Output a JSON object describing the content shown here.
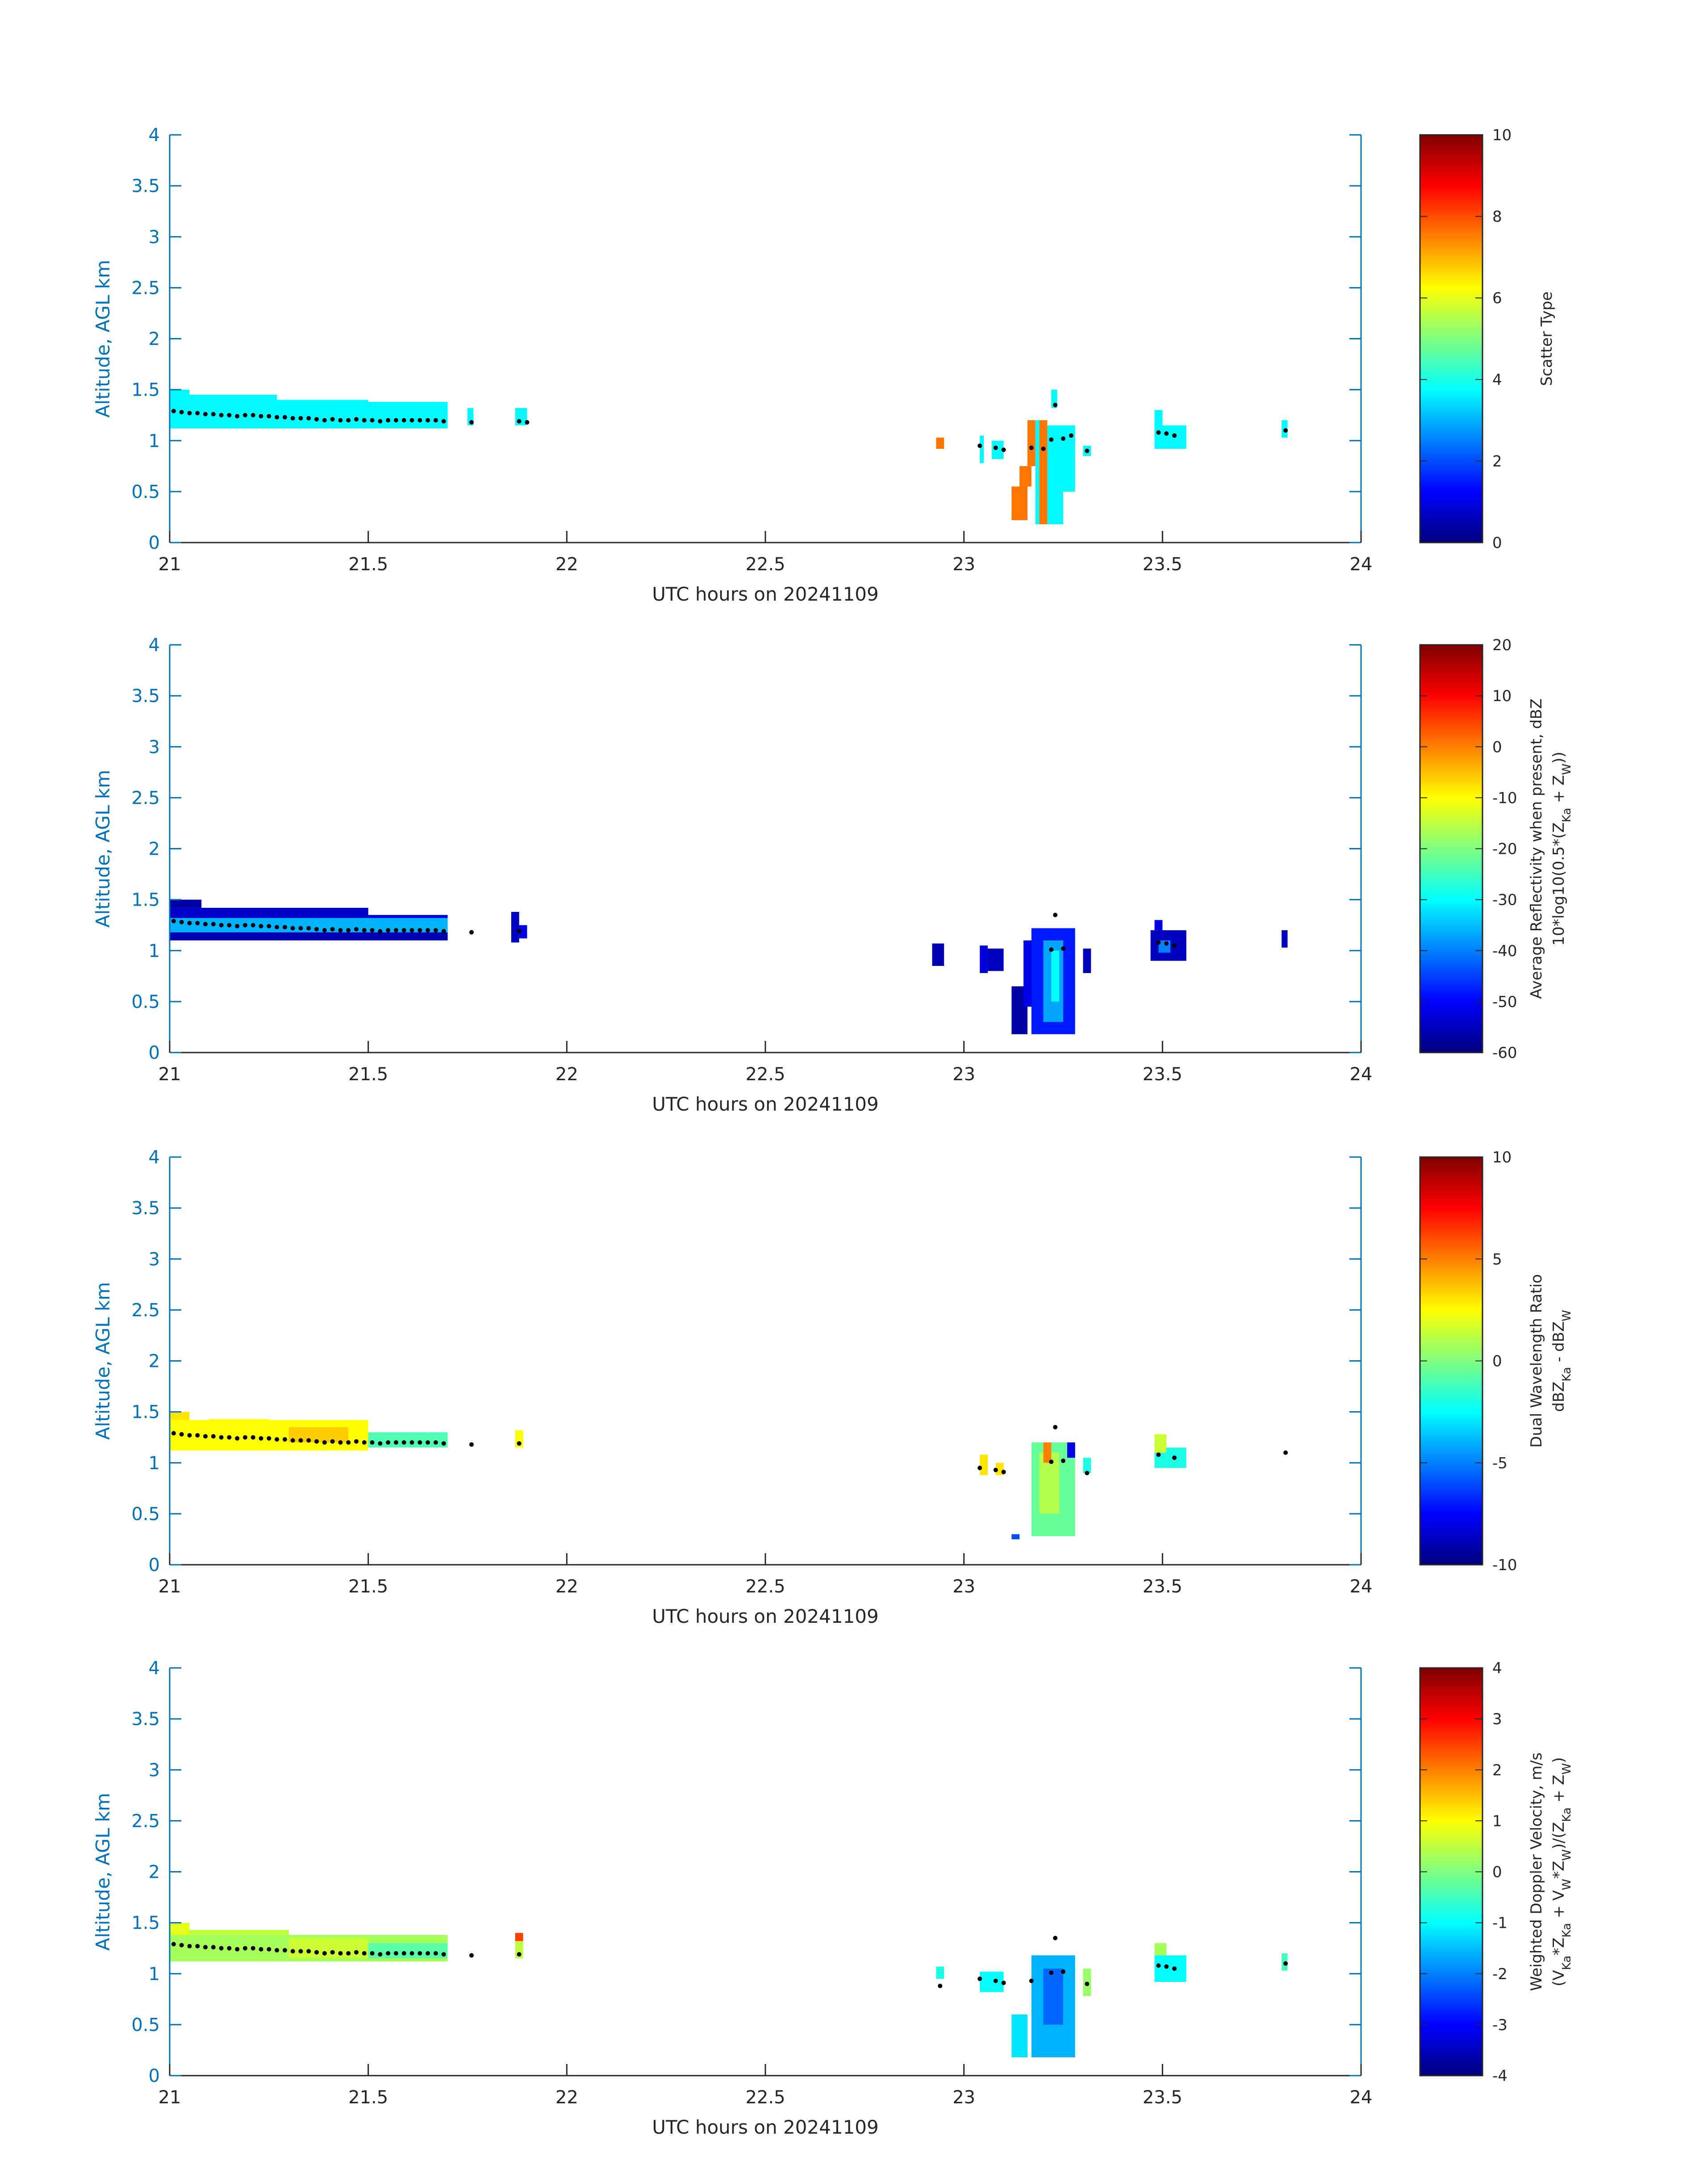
{
  "colors": {
    "axis": "#0072BD",
    "text": "#262626",
    "centroid_dots": "#000000",
    "colormap": "jet"
  },
  "chart_data": [
    {
      "type": "heatmap",
      "xlabel": "UTC hours on 20241109",
      "ylabel": "Altitude, AGL km",
      "xlim": [
        21,
        24
      ],
      "ylim": [
        0,
        4
      ],
      "xticks": [
        "21",
        "21.5",
        "22",
        "22.5",
        "23",
        "23.5",
        "24"
      ],
      "yticks": [
        "0",
        "0.5",
        "1",
        "1.5",
        "2",
        "2.5",
        "3",
        "3.5",
        "4"
      ],
      "colorbar": {
        "label": "Scatter Type",
        "sublabel": "",
        "clim": [
          0,
          10
        ],
        "ticks": [
          "0",
          "2",
          "4",
          "6",
          "8",
          "10"
        ]
      },
      "cells": [
        {
          "x0": 21.0,
          "x1": 21.7,
          "y0": 1.12,
          "y1": 1.38,
          "v": 3.7
        },
        {
          "x0": 21.0,
          "x1": 21.05,
          "y0": 1.38,
          "y1": 1.5,
          "v": 3.7
        },
        {
          "x0": 21.05,
          "x1": 21.27,
          "y0": 1.38,
          "y1": 1.45,
          "v": 3.7
        },
        {
          "x0": 21.27,
          "x1": 21.5,
          "y0": 1.38,
          "y1": 1.4,
          "v": 3.7
        },
        {
          "x0": 21.75,
          "x1": 21.765,
          "y0": 1.15,
          "y1": 1.32,
          "v": 3.7
        },
        {
          "x0": 21.87,
          "x1": 21.9,
          "y0": 1.15,
          "y1": 1.32,
          "v": 3.7
        },
        {
          "x0": 22.93,
          "x1": 22.95,
          "y0": 0.92,
          "y1": 1.03,
          "v": 7.6
        },
        {
          "x0": 23.04,
          "x1": 23.05,
          "y0": 0.78,
          "y1": 1.05,
          "v": 3.7
        },
        {
          "x0": 23.07,
          "x1": 23.1,
          "y0": 0.82,
          "y1": 1.0,
          "v": 3.7
        },
        {
          "x0": 23.12,
          "x1": 23.16,
          "y0": 0.22,
          "y1": 0.55,
          "v": 7.6
        },
        {
          "x0": 23.14,
          "x1": 23.17,
          "y0": 0.55,
          "y1": 0.75,
          "v": 7.6
        },
        {
          "x0": 23.16,
          "x1": 23.18,
          "y0": 0.75,
          "y1": 1.2,
          "v": 7.6
        },
        {
          "x0": 23.18,
          "x1": 23.2,
          "y0": 0.4,
          "y1": 1.2,
          "v": 3.7
        },
        {
          "x0": 23.18,
          "x1": 23.2,
          "y0": 0.18,
          "y1": 0.4,
          "v": 3.7
        },
        {
          "x0": 23.19,
          "x1": 23.21,
          "y0": 0.18,
          "y1": 1.2,
          "v": 7.6
        },
        {
          "x0": 23.21,
          "x1": 23.25,
          "y0": 0.18,
          "y1": 1.15,
          "v": 3.7
        },
        {
          "x0": 23.22,
          "x1": 23.235,
          "y0": 1.32,
          "y1": 1.5,
          "v": 3.7
        },
        {
          "x0": 23.25,
          "x1": 23.28,
          "y0": 0.5,
          "y1": 1.15,
          "v": 3.7
        },
        {
          "x0": 23.3,
          "x1": 23.32,
          "y0": 0.85,
          "y1": 0.95,
          "v": 3.7
        },
        {
          "x0": 23.48,
          "x1": 23.56,
          "y0": 0.92,
          "y1": 1.15,
          "v": 3.7
        },
        {
          "x0": 23.48,
          "x1": 23.5,
          "y0": 1.15,
          "y1": 1.3,
          "v": 3.7
        },
        {
          "x0": 23.8,
          "x1": 23.815,
          "y0": 1.03,
          "y1": 1.2,
          "v": 3.7
        }
      ],
      "dots": {
        "x": [
          21.01,
          21.03,
          21.05,
          21.07,
          21.09,
          21.11,
          21.13,
          21.15,
          21.17,
          21.19,
          21.21,
          21.23,
          21.25,
          21.27,
          21.29,
          21.31,
          21.33,
          21.35,
          21.37,
          21.39,
          21.41,
          21.43,
          21.45,
          21.47,
          21.49,
          21.51,
          21.53,
          21.55,
          21.57,
          21.59,
          21.61,
          21.63,
          21.65,
          21.67,
          21.69,
          21.76,
          21.88,
          21.9,
          23.04,
          23.08,
          23.1,
          23.17,
          23.2,
          23.22,
          23.23,
          23.25,
          23.27,
          23.31,
          23.49,
          23.51,
          23.53,
          23.81
        ],
        "y": [
          1.29,
          1.28,
          1.27,
          1.27,
          1.26,
          1.26,
          1.25,
          1.25,
          1.24,
          1.25,
          1.25,
          1.24,
          1.24,
          1.23,
          1.23,
          1.22,
          1.22,
          1.22,
          1.21,
          1.2,
          1.21,
          1.2,
          1.2,
          1.21,
          1.2,
          1.2,
          1.19,
          1.2,
          1.2,
          1.2,
          1.2,
          1.2,
          1.2,
          1.2,
          1.19,
          1.18,
          1.19,
          1.18,
          0.95,
          0.93,
          0.91,
          0.93,
          0.92,
          1.01,
          1.35,
          1.02,
          1.05,
          0.9,
          1.08,
          1.07,
          1.05,
          1.1
        ]
      }
    },
    {
      "type": "heatmap",
      "xlabel": "UTC hours on 20241109",
      "ylabel": "Altitude, AGL km",
      "xlim": [
        21,
        24
      ],
      "ylim": [
        0,
        4
      ],
      "xticks": [
        "21",
        "21.5",
        "22",
        "22.5",
        "23",
        "23.5",
        "24"
      ],
      "yticks": [
        "0",
        "0.5",
        "1",
        "1.5",
        "2",
        "2.5",
        "3",
        "3.5",
        "4"
      ],
      "colorbar": {
        "label": "Average Reflectivity when present, dBZ",
        "sublabel": "10*log10(0.5*(Z_Ka + Z_W))",
        "clim": [
          -60,
          20
        ],
        "ticks": [
          "-60",
          "-50",
          "-40",
          "-30",
          "-20",
          "-10",
          "0",
          "10",
          "20"
        ]
      },
      "cells": [
        {
          "x0": 21.0,
          "x1": 21.7,
          "y0": 1.1,
          "y1": 1.18,
          "v": -56
        },
        {
          "x0": 21.0,
          "x1": 21.7,
          "y0": 1.18,
          "y1": 1.32,
          "v": -36
        },
        {
          "x0": 21.0,
          "x1": 21.5,
          "y0": 1.32,
          "y1": 1.42,
          "v": -54
        },
        {
          "x0": 21.0,
          "x1": 21.08,
          "y0": 1.42,
          "y1": 1.5,
          "v": -57
        },
        {
          "x0": 21.5,
          "x1": 21.7,
          "y0": 1.32,
          "y1": 1.35,
          "v": -52
        },
        {
          "x0": 21.86,
          "x1": 21.88,
          "y0": 1.08,
          "y1": 1.38,
          "v": -55
        },
        {
          "x0": 21.88,
          "x1": 21.9,
          "y0": 1.12,
          "y1": 1.25,
          "v": -52
        },
        {
          "x0": 22.92,
          "x1": 22.95,
          "y0": 0.85,
          "y1": 1.07,
          "v": -56
        },
        {
          "x0": 23.04,
          "x1": 23.06,
          "y0": 0.78,
          "y1": 1.05,
          "v": -53
        },
        {
          "x0": 23.06,
          "x1": 23.1,
          "y0": 0.8,
          "y1": 1.02,
          "v": -55
        },
        {
          "x0": 23.12,
          "x1": 23.16,
          "y0": 0.18,
          "y1": 0.65,
          "v": -57
        },
        {
          "x0": 23.15,
          "x1": 23.18,
          "y0": 0.45,
          "y1": 1.1,
          "v": -52
        },
        {
          "x0": 23.17,
          "x1": 23.28,
          "y0": 0.18,
          "y1": 1.22,
          "v": -48
        },
        {
          "x0": 23.2,
          "x1": 23.25,
          "y0": 0.3,
          "y1": 1.1,
          "v": -37
        },
        {
          "x0": 23.22,
          "x1": 23.24,
          "y0": 0.5,
          "y1": 1.0,
          "v": -30
        },
        {
          "x0": 23.3,
          "x1": 23.32,
          "y0": 0.78,
          "y1": 1.02,
          "v": -55
        },
        {
          "x0": 23.47,
          "x1": 23.56,
          "y0": 0.9,
          "y1": 1.2,
          "v": -55
        },
        {
          "x0": 23.49,
          "x1": 23.52,
          "y0": 0.98,
          "y1": 1.1,
          "v": -40
        },
        {
          "x0": 23.48,
          "x1": 23.5,
          "y0": 1.2,
          "y1": 1.3,
          "v": -52
        },
        {
          "x0": 23.8,
          "x1": 23.815,
          "y0": 1.03,
          "y1": 1.2,
          "v": -55
        }
      ],
      "dots": {
        "x": [
          21.01,
          21.03,
          21.05,
          21.07,
          21.09,
          21.11,
          21.13,
          21.15,
          21.17,
          21.19,
          21.21,
          21.23,
          21.25,
          21.27,
          21.29,
          21.31,
          21.33,
          21.35,
          21.37,
          21.39,
          21.41,
          21.43,
          21.45,
          21.47,
          21.49,
          21.51,
          21.53,
          21.55,
          21.57,
          21.59,
          21.61,
          21.63,
          21.65,
          21.67,
          21.69,
          21.76,
          21.88,
          23.22,
          23.23,
          23.25,
          23.49,
          23.51,
          23.53
        ],
        "y": [
          1.29,
          1.28,
          1.27,
          1.27,
          1.26,
          1.26,
          1.25,
          1.25,
          1.24,
          1.25,
          1.25,
          1.24,
          1.24,
          1.23,
          1.23,
          1.22,
          1.22,
          1.22,
          1.21,
          1.2,
          1.21,
          1.2,
          1.2,
          1.21,
          1.2,
          1.2,
          1.19,
          1.2,
          1.2,
          1.2,
          1.2,
          1.2,
          1.2,
          1.2,
          1.19,
          1.18,
          1.19,
          1.01,
          1.35,
          1.02,
          1.08,
          1.07,
          1.05
        ]
      }
    },
    {
      "type": "heatmap",
      "xlabel": "UTC hours on 20241109",
      "ylabel": "Altitude, AGL km",
      "xlim": [
        21,
        24
      ],
      "ylim": [
        0,
        4
      ],
      "xticks": [
        "21",
        "21.5",
        "22",
        "22.5",
        "23",
        "23.5",
        "24"
      ],
      "yticks": [
        "0",
        "0.5",
        "1",
        "1.5",
        "2",
        "2.5",
        "3",
        "3.5",
        "4"
      ],
      "colorbar": {
        "label": "Dual Wavelength Ratio",
        "sublabel": "dBZ_Ka - dBZ_W",
        "clim": [
          -10,
          10
        ],
        "ticks": [
          "-10",
          "-5",
          "0",
          "5",
          "10"
        ]
      },
      "cells": [
        {
          "x0": 21.0,
          "x1": 21.5,
          "y0": 1.12,
          "y1": 1.42,
          "v": 2.5
        },
        {
          "x0": 21.0,
          "x1": 21.05,
          "y0": 1.42,
          "y1": 1.5,
          "v": 3.0
        },
        {
          "x0": 21.1,
          "x1": 21.25,
          "y0": 1.38,
          "y1": 1.43,
          "v": 2.5
        },
        {
          "x0": 21.5,
          "x1": 21.7,
          "y0": 1.15,
          "y1": 1.3,
          "v": -1.0
        },
        {
          "x0": 21.3,
          "x1": 21.45,
          "y0": 1.2,
          "y1": 1.35,
          "v": 3.5
        },
        {
          "x0": 21.87,
          "x1": 21.89,
          "y0": 1.15,
          "y1": 1.32,
          "v": 2.5
        },
        {
          "x0": 23.04,
          "x1": 23.06,
          "y0": 0.88,
          "y1": 1.08,
          "v": 3.0
        },
        {
          "x0": 23.08,
          "x1": 23.1,
          "y0": 0.88,
          "y1": 1.0,
          "v": 3.0
        },
        {
          "x0": 23.12,
          "x1": 23.14,
          "y0": 0.25,
          "y1": 0.3,
          "v": -6.0
        },
        {
          "x0": 23.17,
          "x1": 23.28,
          "y0": 0.28,
          "y1": 1.2,
          "v": -0.5
        },
        {
          "x0": 23.19,
          "x1": 23.24,
          "y0": 0.5,
          "y1": 1.1,
          "v": 1.0
        },
        {
          "x0": 23.2,
          "x1": 23.22,
          "y0": 1.0,
          "y1": 1.2,
          "v": 5.0
        },
        {
          "x0": 23.26,
          "x1": 23.28,
          "y0": 1.05,
          "y1": 1.2,
          "v": -8.0
        },
        {
          "x0": 23.3,
          "x1": 23.32,
          "y0": 0.9,
          "y1": 1.05,
          "v": -2.0
        },
        {
          "x0": 23.48,
          "x1": 23.56,
          "y0": 0.95,
          "y1": 1.15,
          "v": -2.0
        },
        {
          "x0": 23.48,
          "x1": 23.51,
          "y0": 1.1,
          "y1": 1.28,
          "v": 1.5
        }
      ],
      "dots": {
        "x": [
          21.01,
          21.03,
          21.05,
          21.07,
          21.09,
          21.11,
          21.13,
          21.15,
          21.17,
          21.19,
          21.21,
          21.23,
          21.25,
          21.27,
          21.29,
          21.31,
          21.33,
          21.35,
          21.37,
          21.39,
          21.41,
          21.43,
          21.45,
          21.47,
          21.49,
          21.51,
          21.53,
          21.55,
          21.57,
          21.59,
          21.61,
          21.63,
          21.65,
          21.67,
          21.69,
          21.76,
          21.88,
          23.04,
          23.08,
          23.1,
          23.22,
          23.23,
          23.25,
          23.31,
          23.49,
          23.53,
          23.81
        ],
        "y": [
          1.29,
          1.28,
          1.27,
          1.27,
          1.26,
          1.26,
          1.25,
          1.25,
          1.24,
          1.25,
          1.25,
          1.24,
          1.24,
          1.23,
          1.23,
          1.22,
          1.22,
          1.22,
          1.21,
          1.2,
          1.21,
          1.2,
          1.2,
          1.21,
          1.2,
          1.2,
          1.19,
          1.2,
          1.2,
          1.2,
          1.2,
          1.2,
          1.2,
          1.2,
          1.19,
          1.18,
          1.19,
          0.95,
          0.93,
          0.91,
          1.01,
          1.35,
          1.02,
          0.9,
          1.08,
          1.05,
          1.1
        ]
      }
    },
    {
      "type": "heatmap",
      "xlabel": "UTC hours on 20241109",
      "ylabel": "Altitude, AGL km",
      "xlim": [
        21,
        24
      ],
      "ylim": [
        0,
        4
      ],
      "xticks": [
        "21",
        "21.5",
        "22",
        "22.5",
        "23",
        "23.5",
        "24"
      ],
      "yticks": [
        "0",
        "0.5",
        "1",
        "1.5",
        "2",
        "2.5",
        "3",
        "3.5",
        "4"
      ],
      "colorbar": {
        "label": "Weighted Doppler Velocity, m/s",
        "sublabel": "(V_Ka*Z_Ka + V_W*Z_W)/(Z_Ka + Z_W)",
        "clim": [
          -4,
          4
        ],
        "ticks": [
          "-4",
          "-3",
          "-2",
          "-1",
          "0",
          "1",
          "2",
          "3",
          "4"
        ]
      },
      "cells": [
        {
          "x0": 21.0,
          "x1": 21.7,
          "y0": 1.12,
          "y1": 1.38,
          "v": 0.3
        },
        {
          "x0": 21.0,
          "x1": 21.05,
          "y0": 1.38,
          "y1": 1.5,
          "v": 0.8
        },
        {
          "x0": 21.05,
          "x1": 21.3,
          "y0": 1.38,
          "y1": 1.43,
          "v": 0.5
        },
        {
          "x0": 21.5,
          "x1": 21.7,
          "y0": 1.15,
          "y1": 1.3,
          "v": -0.3
        },
        {
          "x0": 21.3,
          "x1": 21.5,
          "y0": 1.15,
          "y1": 1.35,
          "v": 0.6
        },
        {
          "x0": 21.87,
          "x1": 21.89,
          "y0": 1.15,
          "y1": 1.32,
          "v": 0.5
        },
        {
          "x0": 21.87,
          "x1": 21.89,
          "y0": 1.32,
          "y1": 1.4,
          "v": 2.5
        },
        {
          "x0": 22.93,
          "x1": 22.95,
          "y0": 0.95,
          "y1": 1.07,
          "v": -0.8
        },
        {
          "x0": 23.04,
          "x1": 23.1,
          "y0": 0.82,
          "y1": 1.02,
          "v": -1.0
        },
        {
          "x0": 23.12,
          "x1": 23.16,
          "y0": 0.18,
          "y1": 0.6,
          "v": -1.2
        },
        {
          "x0": 23.17,
          "x1": 23.28,
          "y0": 0.18,
          "y1": 1.18,
          "v": -1.6
        },
        {
          "x0": 23.2,
          "x1": 23.25,
          "y0": 0.5,
          "y1": 1.05,
          "v": -2.2
        },
        {
          "x0": 23.3,
          "x1": 23.32,
          "y0": 0.78,
          "y1": 1.05,
          "v": 0.2
        },
        {
          "x0": 23.48,
          "x1": 23.56,
          "y0": 0.92,
          "y1": 1.18,
          "v": -1.0
        },
        {
          "x0": 23.48,
          "x1": 23.51,
          "y0": 1.18,
          "y1": 1.3,
          "v": 0.3
        },
        {
          "x0": 23.8,
          "x1": 23.815,
          "y0": 1.03,
          "y1": 1.2,
          "v": -0.5
        }
      ],
      "dots": {
        "x": [
          21.01,
          21.03,
          21.05,
          21.07,
          21.09,
          21.11,
          21.13,
          21.15,
          21.17,
          21.19,
          21.21,
          21.23,
          21.25,
          21.27,
          21.29,
          21.31,
          21.33,
          21.35,
          21.37,
          21.39,
          21.41,
          21.43,
          21.45,
          21.47,
          21.49,
          21.51,
          21.53,
          21.55,
          21.57,
          21.59,
          21.61,
          21.63,
          21.65,
          21.67,
          21.69,
          21.76,
          21.88,
          22.94,
          23.04,
          23.08,
          23.1,
          23.17,
          23.22,
          23.23,
          23.25,
          23.31,
          23.49,
          23.51,
          23.53,
          23.81
        ],
        "y": [
          1.29,
          1.28,
          1.27,
          1.27,
          1.26,
          1.26,
          1.25,
          1.25,
          1.24,
          1.25,
          1.25,
          1.24,
          1.24,
          1.23,
          1.23,
          1.22,
          1.22,
          1.22,
          1.21,
          1.2,
          1.21,
          1.2,
          1.2,
          1.21,
          1.2,
          1.2,
          1.19,
          1.2,
          1.2,
          1.2,
          1.2,
          1.2,
          1.2,
          1.2,
          1.19,
          1.18,
          1.19,
          0.88,
          0.95,
          0.93,
          0.91,
          0.93,
          1.01,
          1.35,
          1.02,
          0.9,
          1.08,
          1.07,
          1.05,
          1.1
        ]
      }
    }
  ]
}
